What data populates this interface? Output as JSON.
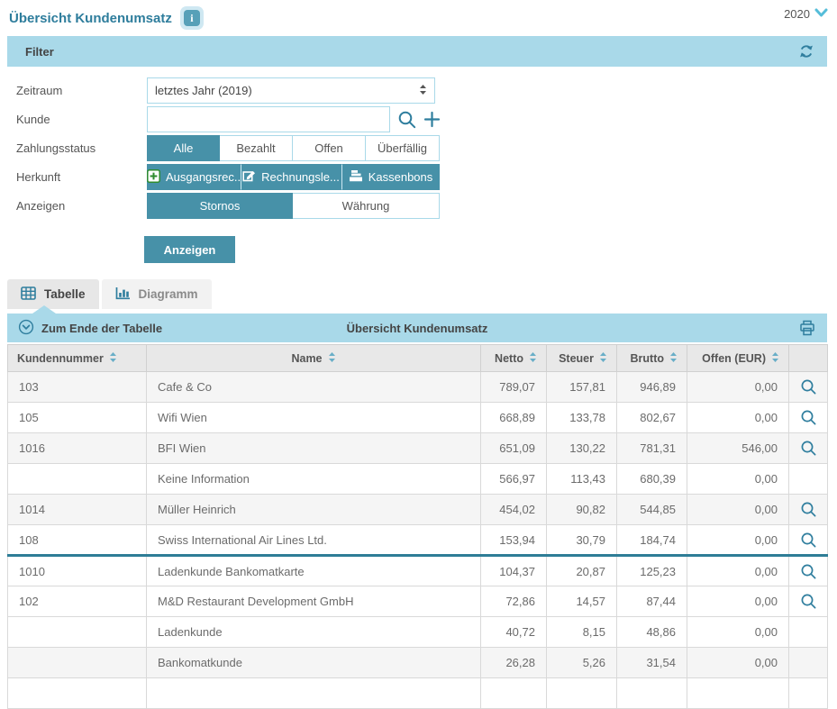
{
  "header": {
    "title": "Übersicht Kundenumsatz",
    "year": "2020"
  },
  "filter": {
    "title": "Filter",
    "zeitraum_label": "Zeitraum",
    "zeitraum_value": "letztes Jahr (2019)",
    "kunde_label": "Kunde",
    "kunde_value": "",
    "zahlungsstatus_label": "Zahlungsstatus",
    "zahlungsstatus_options": [
      {
        "label": "Alle",
        "active": true
      },
      {
        "label": "Bezahlt",
        "active": false
      },
      {
        "label": "Offen",
        "active": false
      },
      {
        "label": "Überfällig",
        "active": false
      }
    ],
    "herkunft_label": "Herkunft",
    "herkunft_options": [
      {
        "label": "Ausgangsrec..",
        "icon": "plus-square-green-icon",
        "active": true
      },
      {
        "label": "Rechnungsle...",
        "icon": "edit-icon",
        "active": true
      },
      {
        "label": "Kassenbons",
        "icon": "cash-register-icon",
        "active": true
      }
    ],
    "anzeigen_label": "Anzeigen",
    "anzeigen_options": [
      {
        "label": "Stornos",
        "active": true
      },
      {
        "label": "Währung",
        "active": false
      }
    ],
    "submit_label": "Anzeigen"
  },
  "tabs": [
    {
      "label": "Tabelle",
      "icon": "table-grid-icon",
      "active": true
    },
    {
      "label": "Diagramm",
      "icon": "bar-chart-icon",
      "active": false
    }
  ],
  "table": {
    "toolbar": {
      "jump_to_end": "Zum Ende der Tabelle",
      "title": "Übersicht Kundenumsatz"
    },
    "columns": [
      {
        "label": "Kundennummer"
      },
      {
        "label": "Name"
      },
      {
        "label": "Netto"
      },
      {
        "label": "Steuer"
      },
      {
        "label": "Brutto"
      },
      {
        "label": "Offen (EUR)"
      }
    ],
    "rows": [
      {
        "kundennummer": "103",
        "name": "Cafe & Co",
        "netto": "789,07",
        "steuer": "157,81",
        "brutto": "946,89",
        "offen": "0,00",
        "has_detail": true,
        "shaded": true,
        "underline": false
      },
      {
        "kundennummer": "105",
        "name": "Wifi Wien",
        "netto": "668,89",
        "steuer": "133,78",
        "brutto": "802,67",
        "offen": "0,00",
        "has_detail": true,
        "shaded": false,
        "underline": false
      },
      {
        "kundennummer": "1016",
        "name": "BFI Wien",
        "netto": "651,09",
        "steuer": "130,22",
        "brutto": "781,31",
        "offen": "546,00",
        "has_detail": true,
        "shaded": true,
        "underline": false
      },
      {
        "kundennummer": "",
        "name": "Keine Information",
        "netto": "566,97",
        "steuer": "113,43",
        "brutto": "680,39",
        "offen": "0,00",
        "has_detail": false,
        "shaded": false,
        "underline": false
      },
      {
        "kundennummer": "1014",
        "name": "Müller Heinrich",
        "netto": "454,02",
        "steuer": "90,82",
        "brutto": "544,85",
        "offen": "0,00",
        "has_detail": true,
        "shaded": true,
        "underline": false
      },
      {
        "kundennummer": "108",
        "name": "Swiss International Air Lines Ltd.",
        "netto": "153,94",
        "steuer": "30,79",
        "brutto": "184,74",
        "offen": "0,00",
        "has_detail": true,
        "shaded": false,
        "underline": true
      },
      {
        "kundennummer": "1010",
        "name": "Ladenkunde Bankomatkarte",
        "netto": "104,37",
        "steuer": "20,87",
        "brutto": "125,23",
        "offen": "0,00",
        "has_detail": true,
        "shaded": false,
        "underline": false
      },
      {
        "kundennummer": "102",
        "name": "M&D Restaurant Development GmbH",
        "netto": "72,86",
        "steuer": "14,57",
        "brutto": "87,44",
        "offen": "0,00",
        "has_detail": true,
        "shaded": false,
        "underline": false
      },
      {
        "kundennummer": "",
        "name": "Ladenkunde",
        "netto": "40,72",
        "steuer": "8,15",
        "brutto": "48,86",
        "offen": "0,00",
        "has_detail": false,
        "shaded": false,
        "underline": false
      },
      {
        "kundennummer": "",
        "name": "Bankomatkunde",
        "netto": "26,28",
        "steuer": "5,26",
        "brutto": "31,54",
        "offen": "0,00",
        "has_detail": false,
        "shaded": true,
        "underline": false
      },
      {
        "kundennummer": "",
        "name": "",
        "netto": "",
        "steuer": "",
        "brutto": "",
        "offen": "",
        "has_detail": false,
        "shaded": false,
        "underline": false
      }
    ]
  },
  "colors": {
    "accent_teal": "#4791a8",
    "icon_teal": "#2f7e9e",
    "panel_blue": "#a9d9e9",
    "title_blue": "#2e7d9c",
    "row_highlight_border": "#2e7d96",
    "header_gray": "#e8e8e8",
    "row_shade_gray": "#f5f5f5"
  }
}
